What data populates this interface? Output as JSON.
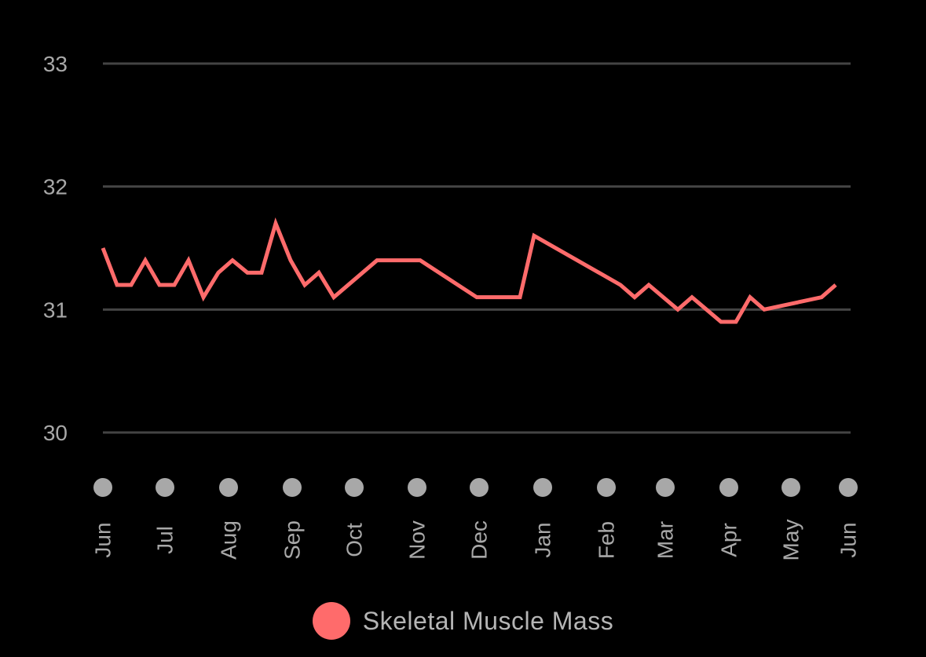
{
  "chart_data": {
    "type": "line",
    "y_ticks": [
      "33",
      "32",
      "31",
      "30"
    ],
    "ylim": [
      30,
      33
    ],
    "x_tick_labels": [
      "Jun",
      "Jul",
      "Aug",
      "Sep",
      "Oct",
      "Nov",
      "Dec",
      "Jan",
      "Feb",
      "Mar",
      "Apr",
      "May",
      "Jun"
    ],
    "grid": true,
    "legend_position": "bottom-center",
    "series": [
      {
        "name": "Skeletal Muscle Mass",
        "color": "#ff6b6b",
        "points": [
          {
            "x": "Jun",
            "y": 31.5
          },
          {
            "x": "Jun",
            "y": 31.2
          },
          {
            "x": "Jun",
            "y": 31.2
          },
          {
            "x": "Jul",
            "y": 31.4
          },
          {
            "x": "Jul",
            "y": 31.2
          },
          {
            "x": "Jul",
            "y": 31.2
          },
          {
            "x": "Jul",
            "y": 31.4
          },
          {
            "x": "Jul",
            "y": 31.1
          },
          {
            "x": "Aug",
            "y": 31.3
          },
          {
            "x": "Aug",
            "y": 31.4
          },
          {
            "x": "Aug",
            "y": 31.3
          },
          {
            "x": "Aug",
            "y": 31.3
          },
          {
            "x": "Aug",
            "y": 31.7
          },
          {
            "x": "Sep",
            "y": 31.4
          },
          {
            "x": "Sep",
            "y": 31.2
          },
          {
            "x": "Sep",
            "y": 31.3
          },
          {
            "x": "Sep",
            "y": 31.1
          },
          {
            "x": "Oct",
            "y": 31.4
          },
          {
            "x": "Nov",
            "y": 31.4
          },
          {
            "x": "Dec",
            "y": 31.1
          },
          {
            "x": "Dec",
            "y": 31.1
          },
          {
            "x": "Jan",
            "y": 31.6
          },
          {
            "x": "Feb",
            "y": 31.2
          },
          {
            "x": "Feb",
            "y": 31.1
          },
          {
            "x": "Mar",
            "y": 31.2
          },
          {
            "x": "Mar",
            "y": 31.0
          },
          {
            "x": "Mar",
            "y": 31.1
          },
          {
            "x": "Apr",
            "y": 30.9
          },
          {
            "x": "Apr",
            "y": 30.9
          },
          {
            "x": "Apr",
            "y": 31.1
          },
          {
            "x": "Apr",
            "y": 31.0
          },
          {
            "x": "May",
            "y": 31.1
          },
          {
            "x": "Jun",
            "y": 31.2
          }
        ]
      }
    ]
  },
  "colors": {
    "background": "#000000",
    "gridline": "#444444",
    "tick_label": "#a8a8a8",
    "tick_dot": "#a8a8a8",
    "legend_label": "#b5b5b5"
  }
}
